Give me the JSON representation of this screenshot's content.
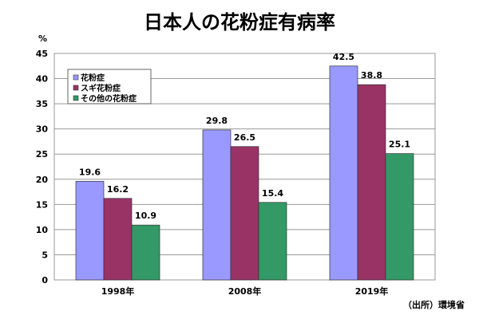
{
  "title": "日本人の花粉症有病率",
  "source": "（出所）環境省",
  "chart_data": {
    "type": "bar",
    "title": "日本人の花粉症有病率",
    "xlabel": "",
    "ylabel": "%",
    "ylim": [
      0,
      45
    ],
    "yticks": [
      0,
      5,
      10,
      15,
      20,
      25,
      30,
      35,
      40,
      45
    ],
    "grid": true,
    "legend_position": "top-left",
    "categories": [
      "1998年",
      "2008年",
      "2019年"
    ],
    "series": [
      {
        "name": "花粉症",
        "values": [
          19.6,
          29.8,
          42.5
        ],
        "color": "#9999ff"
      },
      {
        "name": "スギ花粉症",
        "values": [
          16.2,
          26.5,
          38.8
        ],
        "color": "#993366"
      },
      {
        "name": "その他の花粉症",
        "values": [
          10.9,
          15.4,
          25.1
        ],
        "color": "#339966"
      }
    ]
  }
}
